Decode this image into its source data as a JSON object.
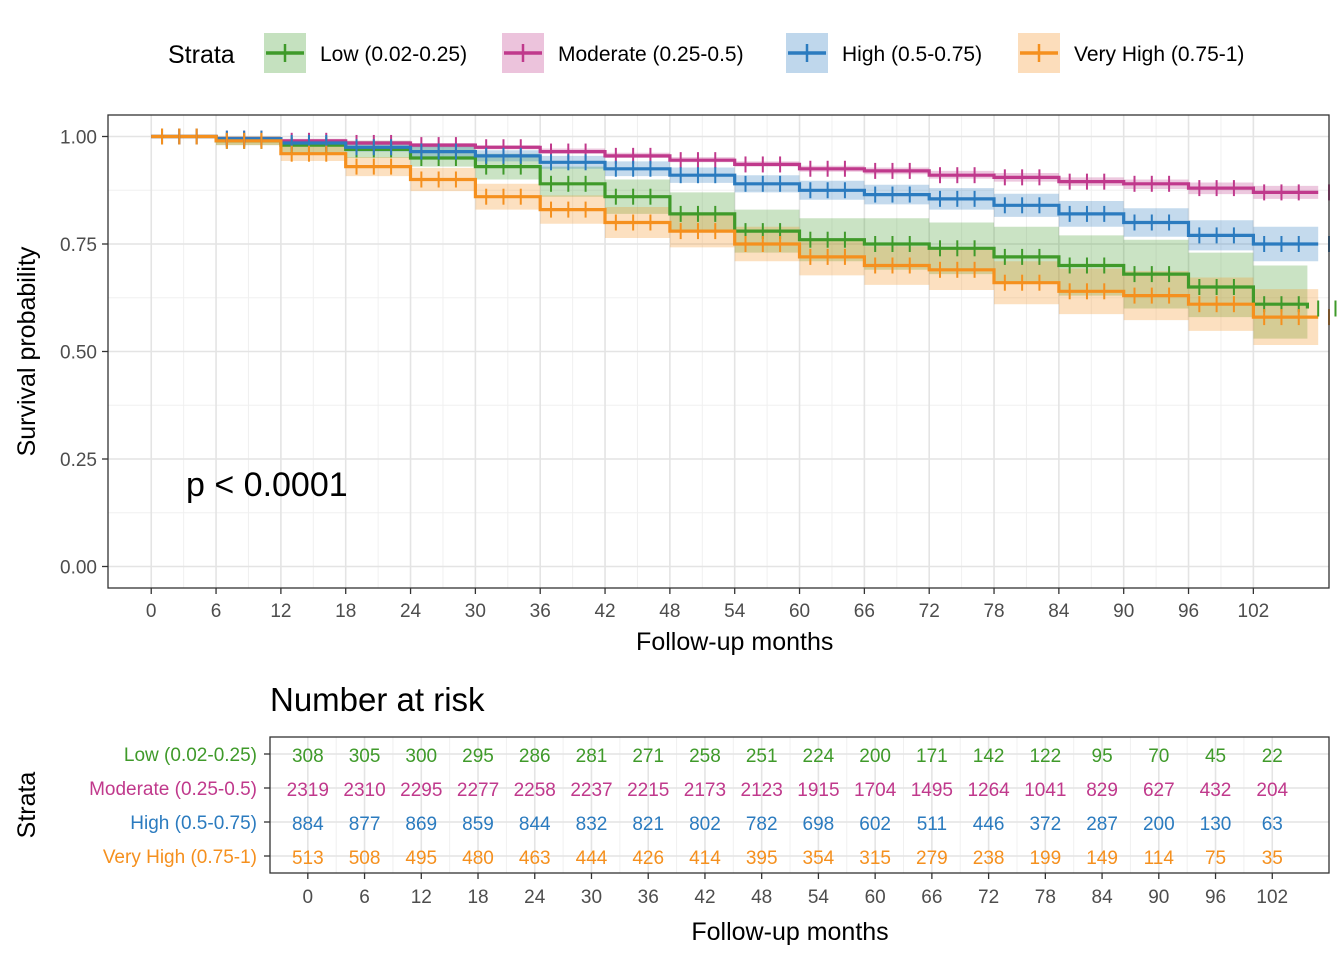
{
  "chart_data": [
    {
      "type": "line",
      "subtype": "kaplan-meier",
      "xlabel": "Follow-up months",
      "ylabel": "Survival probability",
      "xlim": [
        -4,
        109
      ],
      "ylim": [
        -0.05,
        1.05
      ],
      "xticks": [
        0,
        6,
        12,
        18,
        24,
        30,
        36,
        42,
        48,
        54,
        60,
        66,
        72,
        78,
        84,
        90,
        96,
        102
      ],
      "yticks": [
        0.0,
        0.25,
        0.5,
        0.75,
        1.0
      ],
      "ytick_labels": [
        "0.00",
        "0.25",
        "0.50",
        "0.75",
        "1.00"
      ],
      "grid": true,
      "annotation": "p < 0.0001",
      "legend": {
        "title": "Strata",
        "position": "top"
      },
      "series": [
        {
          "name": "Low (0.02-0.25)",
          "color": "#3f9a2a",
          "x": [
            0,
            6,
            12,
            18,
            24,
            30,
            36,
            42,
            48,
            54,
            60,
            66,
            72,
            78,
            84,
            90,
            96,
            102,
            107
          ],
          "y": [
            1.0,
            0.99,
            0.98,
            0.97,
            0.95,
            0.93,
            0.89,
            0.86,
            0.82,
            0.78,
            0.76,
            0.75,
            0.74,
            0.72,
            0.7,
            0.68,
            0.65,
            0.61,
            0.6
          ],
          "ci_lower": [
            1.0,
            0.98,
            0.96,
            0.95,
            0.93,
            0.9,
            0.86,
            0.82,
            0.78,
            0.73,
            0.71,
            0.69,
            0.68,
            0.66,
            0.63,
            0.6,
            0.58,
            0.53,
            0.51
          ],
          "ci_upper": [
            1.0,
            1.0,
            0.99,
            0.99,
            0.98,
            0.96,
            0.93,
            0.9,
            0.87,
            0.83,
            0.81,
            0.81,
            0.8,
            0.79,
            0.77,
            0.76,
            0.73,
            0.7,
            0.7
          ]
        },
        {
          "name": "Moderate (0.25-0.5)",
          "color": "#c0398c",
          "x": [
            0,
            6,
            12,
            18,
            24,
            30,
            36,
            42,
            48,
            54,
            60,
            66,
            72,
            78,
            84,
            90,
            96,
            102,
            108
          ],
          "y": [
            1.0,
            0.995,
            0.99,
            0.985,
            0.98,
            0.975,
            0.965,
            0.955,
            0.945,
            0.935,
            0.925,
            0.92,
            0.91,
            0.905,
            0.895,
            0.89,
            0.88,
            0.87,
            0.87
          ],
          "ci_lower": [
            1.0,
            0.99,
            0.985,
            0.98,
            0.975,
            0.97,
            0.96,
            0.95,
            0.94,
            0.93,
            0.918,
            0.912,
            0.902,
            0.895,
            0.885,
            0.878,
            0.866,
            0.855,
            0.853
          ],
          "ci_upper": [
            1.0,
            1.0,
            0.995,
            0.99,
            0.985,
            0.98,
            0.972,
            0.962,
            0.952,
            0.942,
            0.932,
            0.928,
            0.92,
            0.915,
            0.905,
            0.9,
            0.893,
            0.885,
            0.887
          ]
        },
        {
          "name": "High (0.5-0.75)",
          "color": "#2b7bbf",
          "x": [
            0,
            6,
            12,
            18,
            24,
            30,
            36,
            42,
            48,
            54,
            60,
            66,
            72,
            78,
            84,
            90,
            96,
            102,
            108
          ],
          "y": [
            1.0,
            0.995,
            0.985,
            0.975,
            0.965,
            0.955,
            0.94,
            0.925,
            0.91,
            0.89,
            0.875,
            0.865,
            0.855,
            0.84,
            0.82,
            0.8,
            0.77,
            0.75,
            0.75
          ],
          "ci_lower": [
            1.0,
            0.99,
            0.978,
            0.965,
            0.953,
            0.942,
            0.925,
            0.908,
            0.892,
            0.87,
            0.853,
            0.842,
            0.83,
            0.813,
            0.79,
            0.767,
            0.735,
            0.71,
            0.71
          ],
          "ci_upper": [
            1.0,
            1.0,
            0.993,
            0.985,
            0.977,
            0.968,
            0.955,
            0.942,
            0.928,
            0.91,
            0.897,
            0.888,
            0.88,
            0.867,
            0.85,
            0.833,
            0.805,
            0.79,
            0.79
          ]
        },
        {
          "name": "Very High (0.75-1)",
          "color": "#f5901e",
          "x": [
            0,
            6,
            12,
            18,
            24,
            30,
            36,
            42,
            48,
            54,
            60,
            66,
            72,
            78,
            84,
            90,
            96,
            102,
            108
          ],
          "y": [
            1.0,
            0.99,
            0.96,
            0.93,
            0.9,
            0.86,
            0.83,
            0.8,
            0.78,
            0.75,
            0.72,
            0.7,
            0.69,
            0.66,
            0.64,
            0.63,
            0.61,
            0.58,
            0.58
          ],
          "ci_lower": [
            1.0,
            0.98,
            0.943,
            0.908,
            0.873,
            0.83,
            0.797,
            0.764,
            0.742,
            0.71,
            0.677,
            0.655,
            0.643,
            0.61,
            0.587,
            0.573,
            0.548,
            0.515,
            0.515
          ],
          "ci_upper": [
            1.0,
            1.0,
            0.977,
            0.952,
            0.927,
            0.89,
            0.863,
            0.836,
            0.818,
            0.79,
            0.763,
            0.745,
            0.737,
            0.71,
            0.693,
            0.687,
            0.672,
            0.645,
            0.645
          ]
        }
      ]
    },
    {
      "type": "table",
      "title": "Number at risk",
      "xlabel": "Follow-up months",
      "ylabel": "Strata",
      "xlim": [
        -4,
        108
      ],
      "grid": true,
      "x": [
        0,
        6,
        12,
        18,
        24,
        30,
        36,
        42,
        48,
        54,
        60,
        66,
        72,
        78,
        84,
        90,
        96,
        102
      ],
      "rows": [
        {
          "name": "Low (0.02-0.25)",
          "color": "#3f9a2a",
          "values": [
            308,
            305,
            300,
            295,
            286,
            281,
            271,
            258,
            251,
            224,
            200,
            171,
            142,
            122,
            95,
            70,
            45,
            22
          ]
        },
        {
          "name": "Moderate (0.25-0.5)",
          "color": "#c0398c",
          "values": [
            2319,
            2310,
            2295,
            2277,
            2258,
            2237,
            2215,
            2173,
            2123,
            1915,
            1704,
            1495,
            1264,
            1041,
            829,
            627,
            432,
            204
          ]
        },
        {
          "name": "High (0.5-0.75)",
          "color": "#2b7bbf",
          "values": [
            884,
            877,
            869,
            859,
            844,
            832,
            821,
            802,
            782,
            698,
            602,
            511,
            446,
            372,
            287,
            200,
            130,
            63
          ]
        },
        {
          "name": "Very High (0.75-1)",
          "color": "#f5901e",
          "values": [
            513,
            508,
            495,
            480,
            463,
            444,
            426,
            414,
            395,
            354,
            315,
            279,
            238,
            199,
            149,
            114,
            75,
            35
          ]
        }
      ]
    }
  ]
}
